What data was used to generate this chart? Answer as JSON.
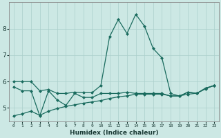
{
  "xlabel": "Humidex (Indice chaleur)",
  "background_color": "#cce8e4",
  "grid_color": "#aacfcb",
  "line_color": "#1a6b5e",
  "x_values": [
    0,
    1,
    2,
    3,
    4,
    5,
    6,
    7,
    8,
    9,
    10,
    11,
    12,
    13,
    14,
    15,
    16,
    17,
    18,
    19,
    20,
    21,
    22,
    23
  ],
  "xlim": [
    -0.5,
    23.5
  ],
  "ylim": [
    4.5,
    9.0
  ],
  "yticks": [
    5,
    6,
    7,
    8
  ],
  "xtick_labels": [
    "0",
    "1",
    "2",
    "3",
    "4",
    "5",
    "6",
    "7",
    "8",
    "9",
    "10",
    "11",
    "12",
    "13",
    "14",
    "15",
    "16",
    "17",
    "18",
    "19",
    "20",
    "21",
    "22",
    "23"
  ],
  "line1": [
    6.0,
    6.0,
    6.0,
    5.65,
    5.7,
    5.55,
    5.55,
    5.6,
    5.58,
    5.58,
    5.85,
    7.7,
    8.35,
    7.82,
    8.55,
    8.1,
    7.25,
    6.9,
    5.55,
    5.45,
    5.6,
    5.55,
    5.75,
    5.85
  ],
  "line2": [
    5.8,
    5.65,
    5.65,
    4.7,
    5.65,
    5.3,
    5.1,
    5.55,
    5.4,
    5.4,
    5.55,
    5.55,
    5.55,
    5.6,
    5.55,
    5.55,
    5.55,
    5.55,
    5.45,
    5.45,
    5.6,
    5.55,
    5.75,
    5.85
  ],
  "line3": [
    4.7,
    4.78,
    4.88,
    4.72,
    4.88,
    4.98,
    5.06,
    5.12,
    5.18,
    5.23,
    5.28,
    5.36,
    5.42,
    5.46,
    5.52,
    5.52,
    5.52,
    5.52,
    5.46,
    5.46,
    5.52,
    5.56,
    5.72,
    5.86
  ]
}
